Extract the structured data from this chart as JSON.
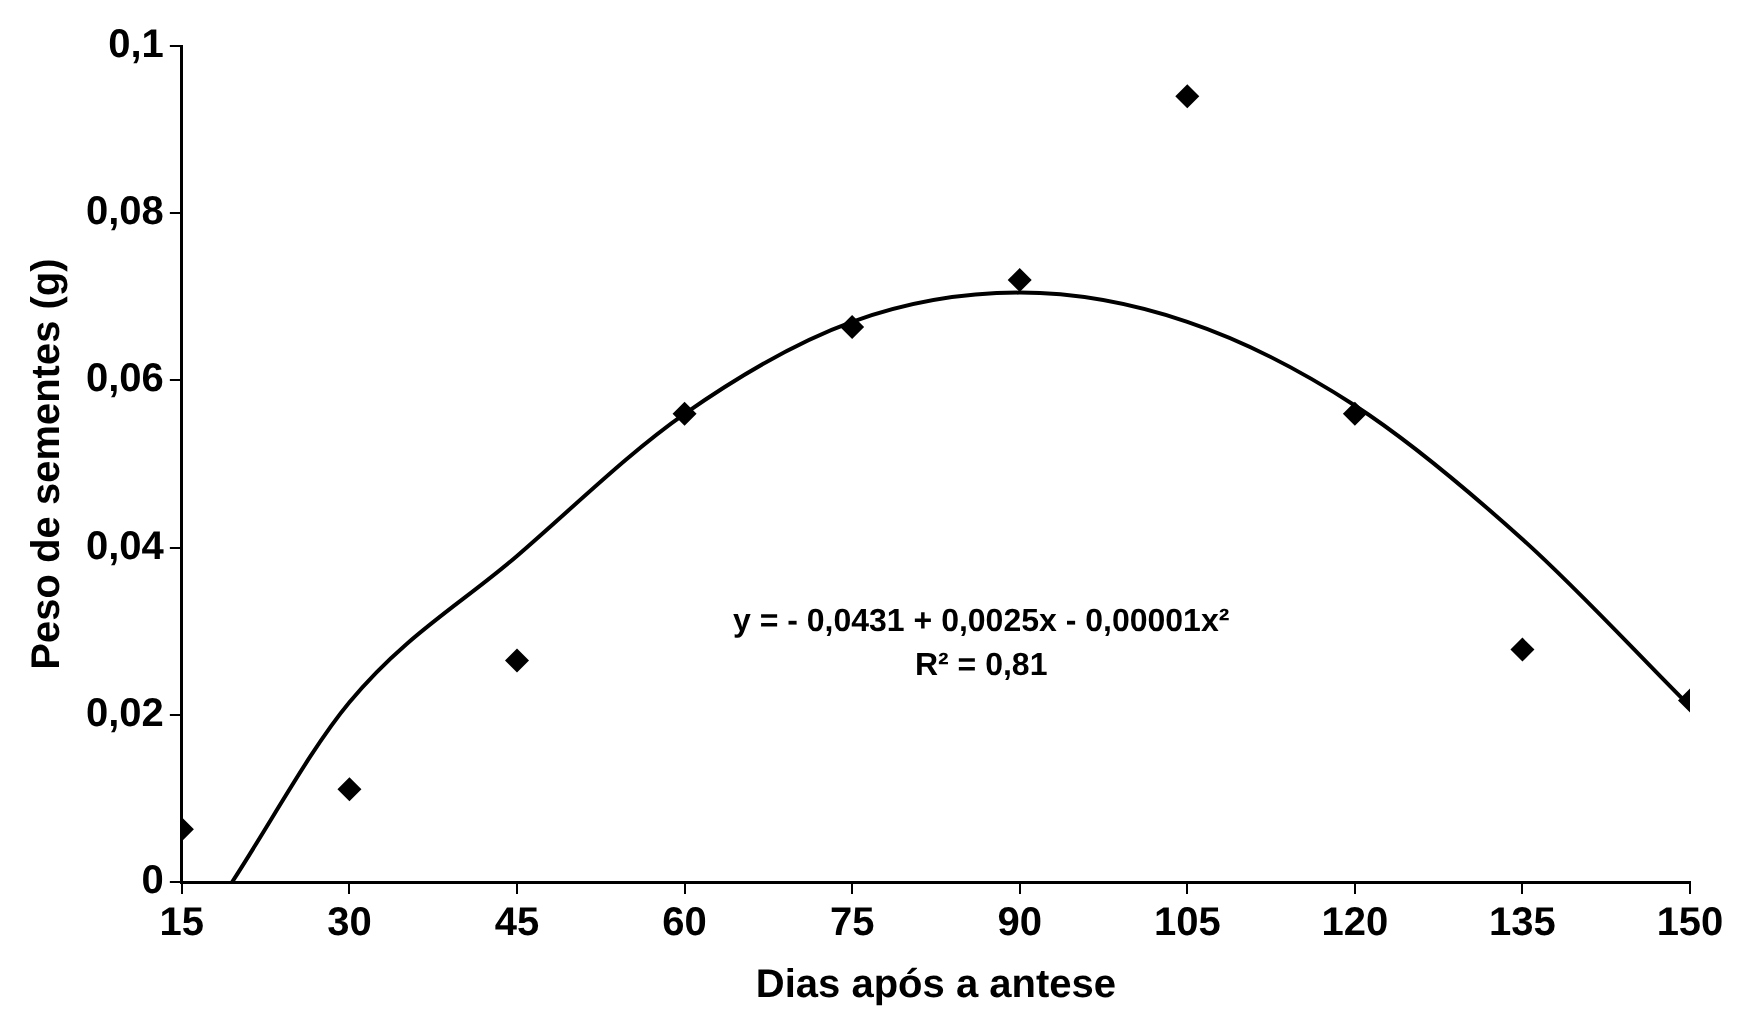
{
  "chart_data": {
    "type": "scatter",
    "xlabel": "Dias após a antese",
    "ylabel": "Peso de sementes (g)",
    "xlim": [
      15,
      150
    ],
    "xticks": [
      15,
      30,
      45,
      60,
      75,
      90,
      105,
      120,
      135,
      150
    ],
    "ylim": [
      0,
      0.1
    ],
    "yticks": [
      {
        "value": 0,
        "label": "0"
      },
      {
        "value": 0.02,
        "label": "0,02"
      },
      {
        "value": 0.04,
        "label": "0,04"
      },
      {
        "value": 0.06,
        "label": "0,06"
      },
      {
        "value": 0.08,
        "label": "0,08"
      },
      {
        "value": 0.1,
        "label": "0,1"
      }
    ],
    "grid": false,
    "series": [
      {
        "type": "scatter",
        "color": "#000000",
        "marker": "diamond",
        "x": [
          15,
          30,
          45,
          60,
          75,
          90,
          105,
          120,
          135,
          150
        ],
        "values": [
          0.0063,
          0.0111,
          0.0265,
          0.056,
          0.0664,
          0.072,
          0.094,
          0.056,
          0.0278,
          0.0217
        ]
      },
      {
        "type": "line",
        "color": "#000000",
        "marker": "none",
        "line_style": "solid",
        "x": [
          19.5,
          30,
          45,
          60,
          75,
          90,
          105,
          120,
          135,
          150
        ],
        "values": [
          0,
          0.0215,
          0.039,
          0.056,
          0.067,
          0.0705,
          0.067,
          0.057,
          0.041,
          0.021
        ]
      }
    ],
    "annotations": [
      "y = - 0,0431 + 0,0025x - 0,00001x²",
      "R² = 0,81"
    ]
  }
}
